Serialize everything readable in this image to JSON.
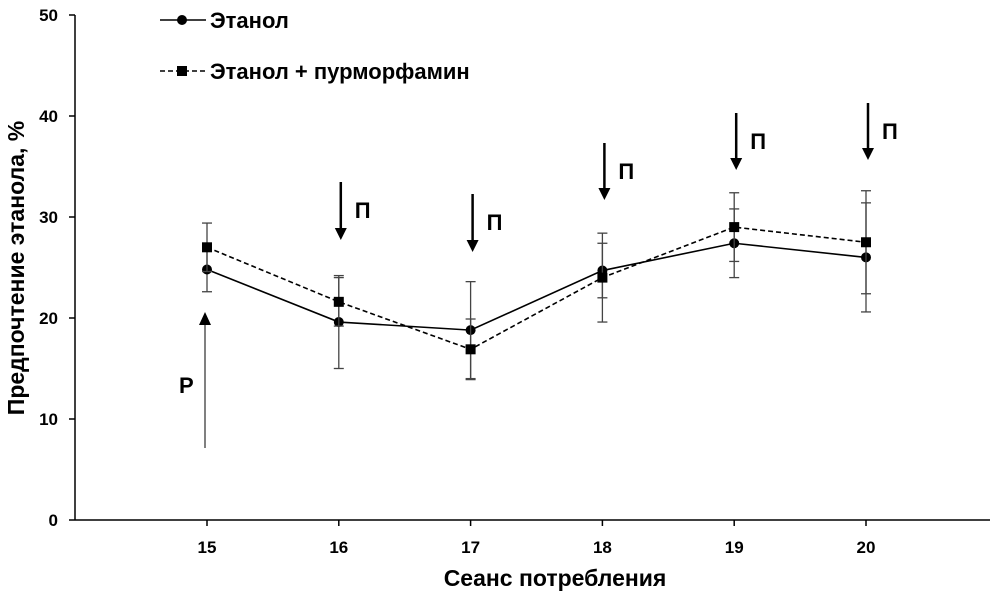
{
  "chart_data": {
    "type": "line",
    "title": "",
    "xlabel": "Сеанс потребления",
    "ylabel": "Предпочтение этанола, %",
    "x": [
      15,
      16,
      17,
      18,
      19,
      20
    ],
    "xlim": [
      14,
      21
    ],
    "ylim": [
      0,
      50
    ],
    "yticks": [
      0,
      10,
      20,
      30,
      40,
      50
    ],
    "grid": false,
    "legend_position": "top-left",
    "series": [
      {
        "name": "Этанол",
        "marker": "circle",
        "line": "solid",
        "values": [
          24.8,
          19.6,
          18.8,
          24.7,
          27.4,
          26.0
        ],
        "errors": [
          2.2,
          4.6,
          4.8,
          2.7,
          3.4,
          5.4
        ]
      },
      {
        "name": "Этанол + пурморфамин",
        "marker": "square",
        "line": "dashed",
        "values": [
          27.0,
          21.6,
          16.9,
          24.0,
          29.0,
          27.5
        ],
        "errors": [
          2.4,
          2.4,
          3.0,
          4.4,
          3.4,
          5.1
        ]
      }
    ],
    "annotations": [
      {
        "text": "Р",
        "x": 15,
        "arrow": "up"
      },
      {
        "text": "П",
        "x": 16,
        "arrow": "down"
      },
      {
        "text": "П",
        "x": 17,
        "arrow": "down"
      },
      {
        "text": "П",
        "x": 18,
        "arrow": "down"
      },
      {
        "text": "П",
        "x": 19,
        "arrow": "down"
      },
      {
        "text": "П",
        "x": 20,
        "arrow": "down"
      }
    ]
  }
}
